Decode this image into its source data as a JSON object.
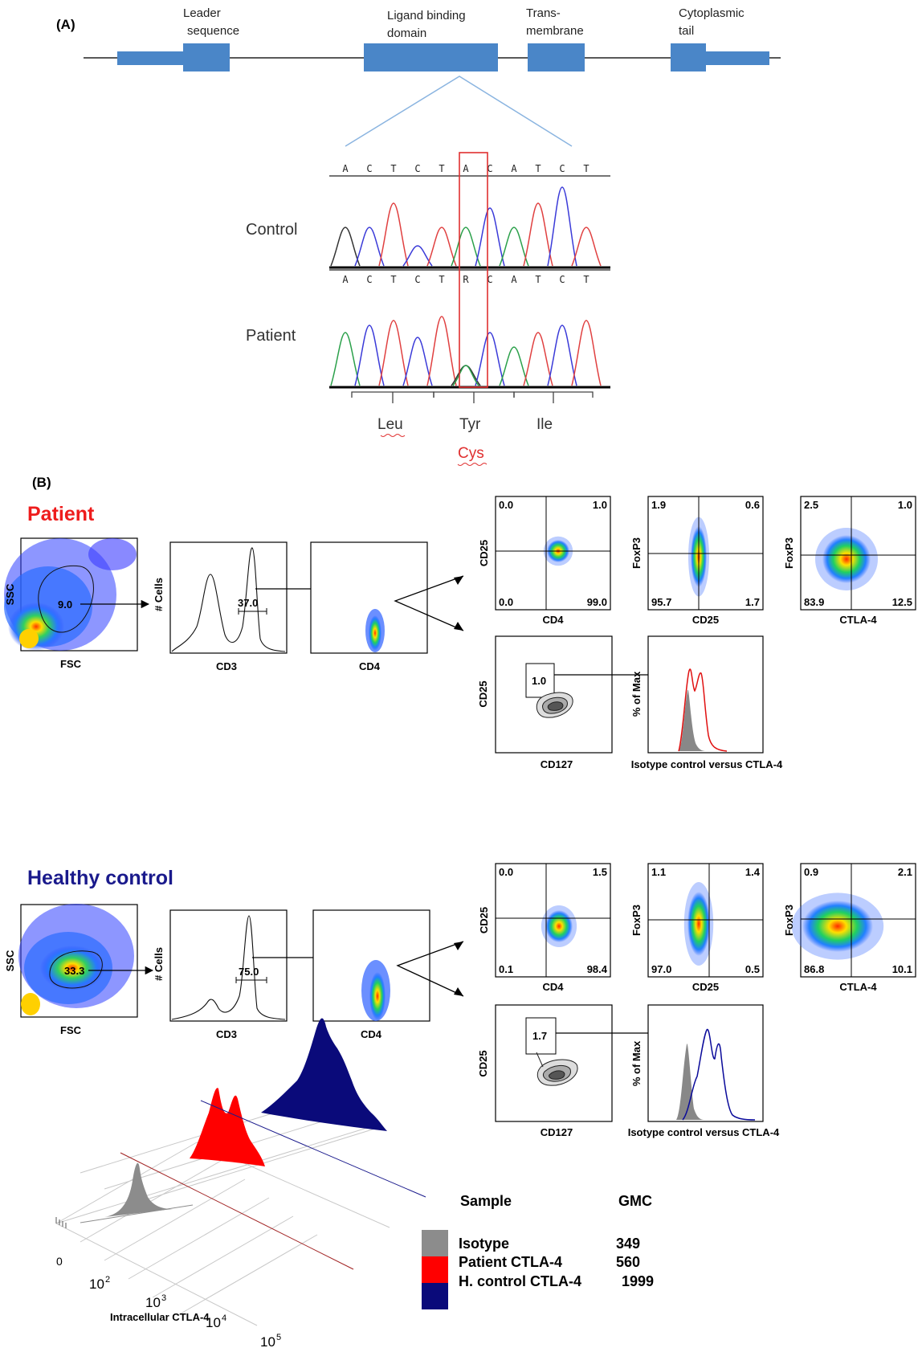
{
  "panel_a": {
    "label": "(A)",
    "gene_labels": [
      {
        "line1": "Leader",
        "line2": "sequence"
      },
      {
        "line1": "Ligand binding",
        "line2": "domain"
      },
      {
        "line1": "Trans-",
        "line2": "membrane"
      },
      {
        "line1": "Cytoplasmic",
        "line2": "tail"
      }
    ],
    "sequence": [
      "A",
      "C",
      "T",
      "C",
      "T",
      "A",
      "C",
      "A",
      "T",
      "C",
      "T"
    ],
    "sequence_patient": [
      "A",
      "C",
      "T",
      "C",
      "T",
      "R",
      "C",
      "A",
      "T",
      "C",
      "T"
    ],
    "trace_labels": {
      "control": "Control",
      "patient": "Patient"
    },
    "amino_acids": [
      "Leu",
      "Tyr",
      "Ile"
    ],
    "mutation": "Cys",
    "colors": {
      "exon": "#4a86c8",
      "mutation": "#e03030",
      "trace_a": "#2aa04a",
      "trace_c": "#3a3ad8",
      "trace_t": "#e04040",
      "trace_g": "#333333"
    }
  },
  "panel_b": {
    "label": "(B)",
    "groups": [
      {
        "title": "Patient",
        "title_color": "#ee1c1c",
        "ssc_fsc": {
          "x_label": "FSC",
          "y_label": "SSC",
          "gate": "9.0"
        },
        "cd3": {
          "x_label": "CD3",
          "y_label": "# Cells",
          "gate": "37.0"
        },
        "cd4": {
          "x_label": "CD4"
        },
        "quads": [
          {
            "x_label": "CD4",
            "y_label": "CD25",
            "ul": "0.0",
            "ur": "1.0",
            "ll": "0.0",
            "lr": "99.0"
          },
          {
            "x_label": "CD25",
            "y_label": "FoxP3",
            "ul": "1.9",
            "ur": "0.6",
            "ll": "95.7",
            "lr": "1.7"
          },
          {
            "x_label": "CTLA-4",
            "y_label": "FoxP3",
            "ul": "2.5",
            "ur": "1.0",
            "ll": "83.9",
            "lr": "12.5"
          }
        ],
        "contour": {
          "x_label": "CD127",
          "y_label": "CD25",
          "gate": "1.0"
        },
        "histogram": {
          "x_label": "Isotype  control versus CTLA-4",
          "y_label": "% of Max",
          "color": "#e01010"
        }
      },
      {
        "title": "Healthy control",
        "title_color": "#1a1a8c",
        "ssc_fsc": {
          "x_label": "FSC",
          "y_label": "SSC",
          "gate": "33.3"
        },
        "cd3": {
          "x_label": "CD3",
          "y_label": "# Cells",
          "gate": "75.0"
        },
        "cd4": {
          "x_label": "CD4"
        },
        "quads": [
          {
            "x_label": "CD4",
            "y_label": "CD25",
            "ul": "0.0",
            "ur": "1.5",
            "ll": "0.1",
            "lr": "98.4"
          },
          {
            "x_label": "CD25",
            "y_label": "FoxP3",
            "ul": "1.1",
            "ur": "1.4",
            "ll": "97.0",
            "lr": "0.5"
          },
          {
            "x_label": "CTLA-4",
            "y_label": "FoxP3",
            "ul": "0.9",
            "ur": "2.1",
            "ll": "86.8",
            "lr": "10.1"
          }
        ],
        "contour": {
          "x_label": "CD127",
          "y_label": "CD25",
          "gate": "1.7"
        },
        "histogram": {
          "x_label": "Isotype  control versus CTLA-4",
          "y_label": "% of Max",
          "color": "#0a0a9a"
        }
      }
    ]
  },
  "overlay": {
    "axis_label": "Intracellular CTLA-4",
    "ticks": [
      "0",
      "10",
      "2",
      "10",
      "3",
      "10",
      "4",
      "10",
      "5"
    ],
    "legend_headers": {
      "sample": "Sample",
      "gmc": "GMC"
    },
    "legend": [
      {
        "name": "Isotype",
        "gmc": "349",
        "color": "#8c8c8c"
      },
      {
        "name": "Patient CTLA-4",
        "gmc": "560",
        "color": "#ff0000"
      },
      {
        "name": "H. control  CTLA-4",
        "gmc": "1999",
        "color": "#0a0a7a"
      }
    ]
  }
}
